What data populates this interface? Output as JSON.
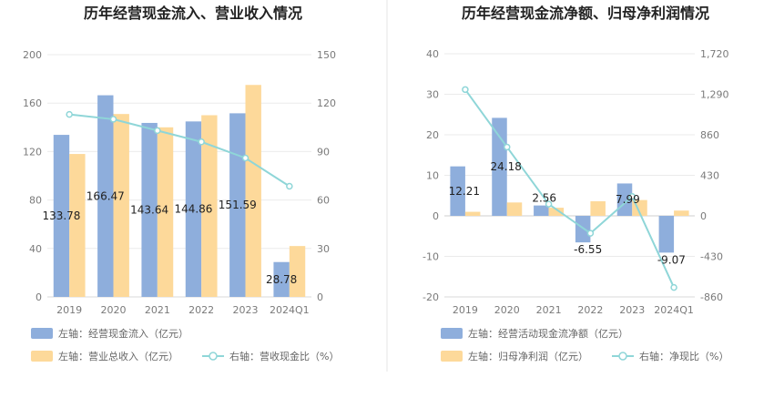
{
  "chart_data": [
    {
      "type": "bar",
      "title": "历年经营现金流入、营业收入情况",
      "categories": [
        "2019",
        "2020",
        "2021",
        "2022",
        "2023",
        "2024Q1"
      ],
      "left_axis": {
        "ticks": [
          "0",
          "40",
          "80",
          "120",
          "160",
          "200"
        ],
        "ylim": [
          0,
          200
        ]
      },
      "right_axis": {
        "ticks": [
          "0",
          "30",
          "60",
          "90",
          "120",
          "150"
        ],
        "ylim": [
          0,
          150
        ]
      },
      "series": [
        {
          "name": "左轴：经营现金流入（亿元）",
          "kind": "bar",
          "axis": "left",
          "color": "#8eaedc",
          "values": [
            133.78,
            166.47,
            143.64,
            144.86,
            151.59,
            28.78
          ],
          "labels": [
            "133.78",
            "166.47",
            "143.64",
            "144.86",
            "151.59",
            "28.78"
          ]
        },
        {
          "name": "左轴：营业总收入（亿元）",
          "kind": "bar",
          "axis": "left",
          "color": "#fdd99a",
          "values": [
            118,
            151,
            140,
            150,
            175,
            42
          ]
        },
        {
          "name": "右轴：营收现金比（%）",
          "kind": "line",
          "axis": "right",
          "color": "#8fd6d8",
          "values": [
            113,
            110,
            103,
            96,
            86,
            68.5
          ]
        }
      ],
      "grid": true,
      "legend_position": "bottom-left"
    },
    {
      "type": "bar",
      "title": "历年经营现金流净额、归母净利润情况",
      "categories": [
        "2019",
        "2020",
        "2021",
        "2022",
        "2023",
        "2024Q1"
      ],
      "left_axis": {
        "ticks": [
          "-20",
          "-10",
          "0",
          "10",
          "20",
          "30",
          "40"
        ],
        "ylim": [
          -20,
          40
        ]
      },
      "right_axis": {
        "ticks": [
          "-860",
          "-430",
          "0",
          "430",
          "860",
          "1,290",
          "1,720"
        ],
        "ylim": [
          -860,
          1720
        ]
      },
      "series": [
        {
          "name": "左轴：经营活动现金流净额（亿元）",
          "kind": "bar",
          "axis": "left",
          "color": "#8eaedc",
          "values": [
            12.21,
            24.18,
            2.56,
            -6.55,
            7.99,
            -9.07
          ],
          "labels": [
            "12.21",
            "24.18",
            "2.56",
            "-6.55",
            "7.99",
            "-9.07"
          ]
        },
        {
          "name": "左轴：归母净利润（亿元）",
          "kind": "bar",
          "axis": "left",
          "color": "#fdd99a",
          "values": [
            1.0,
            3.3,
            2.0,
            3.6,
            3.9,
            1.3
          ]
        },
        {
          "name": "右轴：净现比（%）",
          "kind": "line",
          "axis": "right",
          "color": "#8fd6d8",
          "values": [
            1340,
            730,
            125,
            -185,
            205,
            -760
          ]
        }
      ],
      "grid": true,
      "legend_position": "bottom-left"
    }
  ]
}
